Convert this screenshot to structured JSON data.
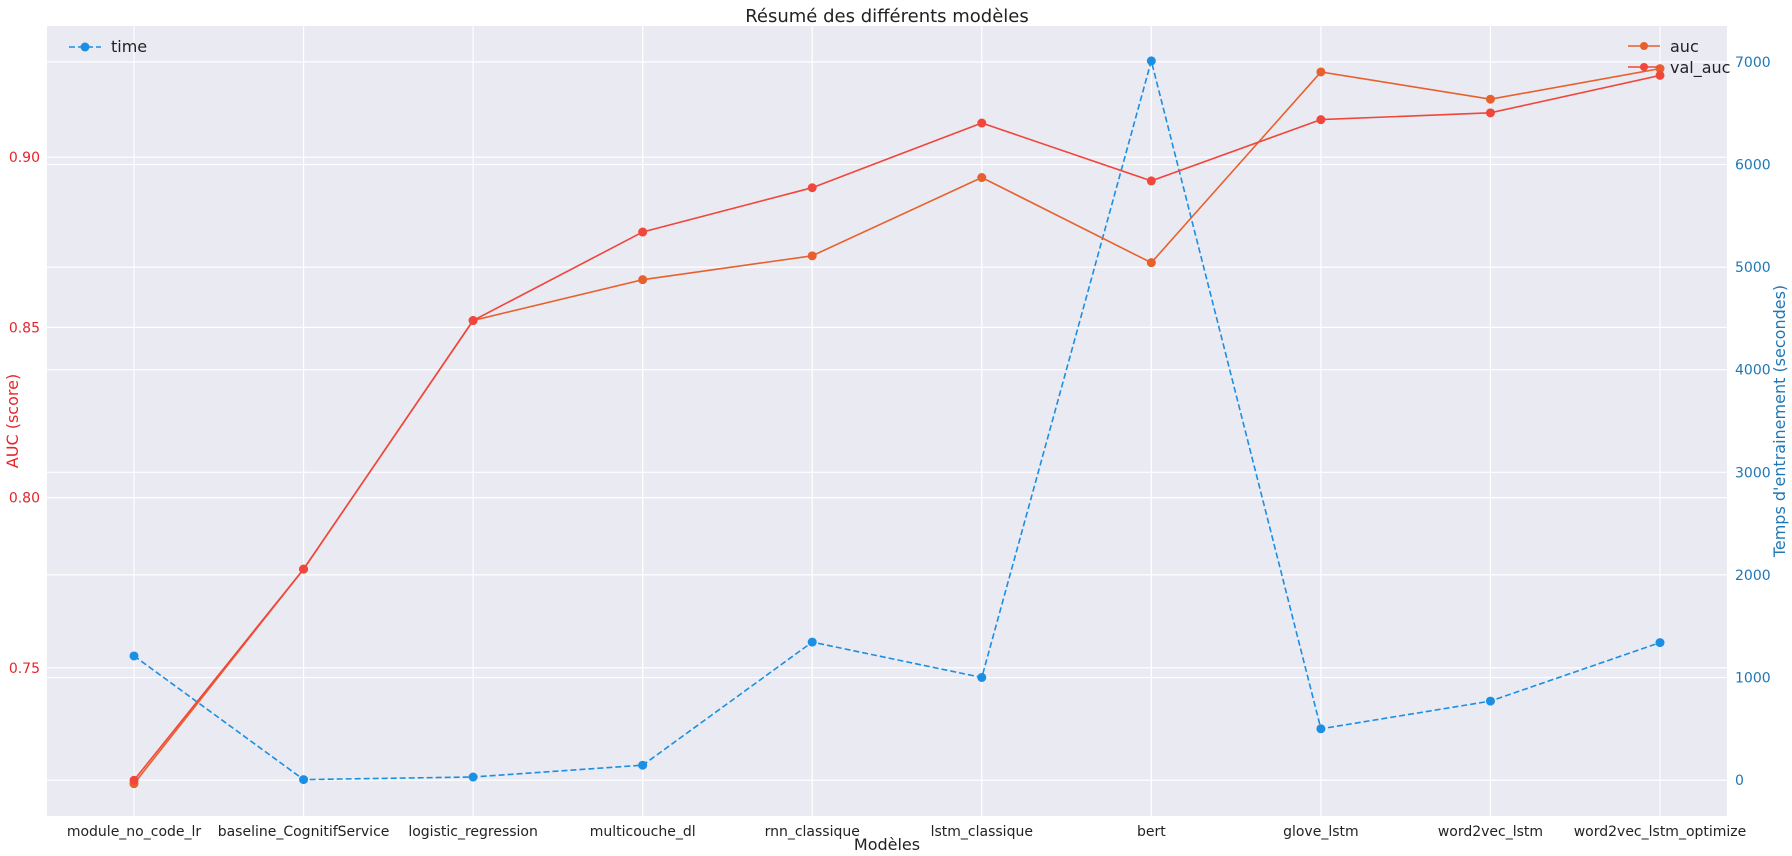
{
  "chart_data": {
    "type": "line",
    "title": "Résumé des différents modèles",
    "xlabel": "Modèles",
    "ylabel_left": "AUC (score)",
    "ylabel_right": "Temps d'entrainement (secondes)",
    "categories": [
      "module_no_code_lr",
      "baseline_CognitifService",
      "logistic_regression",
      "multicouche_dl",
      "rnn_classique",
      "lstm_classique",
      "bert",
      "glove_lstm",
      "word2vec_lstm",
      "word2vec_lstm_optimize"
    ],
    "ylim_left": [
      0.7065,
      0.9385
    ],
    "yticks_left": [
      0.75,
      0.8,
      0.85,
      0.9
    ],
    "ytick_labels_left": [
      "0.75",
      "0.80",
      "0.85",
      "0.90"
    ],
    "ylim_right": [
      -350,
      7350
    ],
    "yticks_right": [
      0,
      1000,
      2000,
      3000,
      4000,
      5000,
      6000,
      7000
    ],
    "ytick_labels_right": [
      "0",
      "1000",
      "2000",
      "3000",
      "4000",
      "5000",
      "6000",
      "7000"
    ],
    "grid": true,
    "series": [
      {
        "name": "auc",
        "axis": "left",
        "color": "#e8602c",
        "style": "solid",
        "values": [
          0.716,
          0.779,
          0.852,
          0.864,
          0.871,
          0.894,
          0.869,
          0.925,
          0.917,
          0.926
        ]
      },
      {
        "name": "val_auc",
        "axis": "left",
        "color": "#f0463c",
        "style": "solid",
        "values": [
          0.717,
          0.779,
          0.852,
          0.878,
          0.891,
          0.91,
          0.893,
          0.911,
          0.913,
          0.924
        ]
      },
      {
        "name": "time",
        "axis": "right",
        "color": "#1a8fe3",
        "style": "dashed",
        "values": [
          1210,
          5,
          30,
          145,
          1345,
          1000,
          7010,
          500,
          770,
          1340
        ]
      }
    ],
    "legends": [
      {
        "placement": "top-left",
        "entries": [
          "time"
        ]
      },
      {
        "placement": "top-right",
        "entries": [
          "auc",
          "val_auc"
        ]
      }
    ],
    "colors": {
      "background": "#eaeaf2",
      "grid": "#ffffff",
      "left_axis": "#e8242a",
      "right_axis": "#1f77b4",
      "text": "#222222"
    }
  }
}
